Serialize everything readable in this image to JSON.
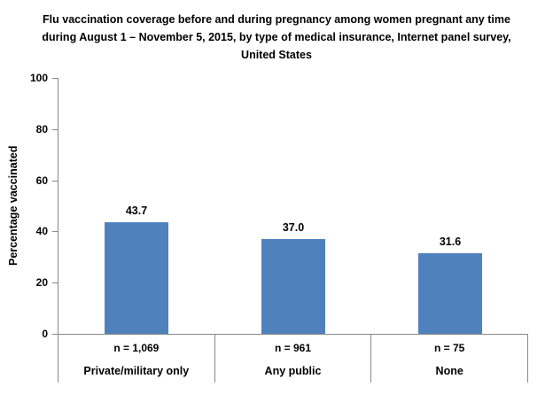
{
  "chart_data": {
    "type": "bar",
    "title": "Flu vaccination coverage before and during pregnancy among women pregnant any time during August 1 – November 5, 2015, by type of medical insurance, Internet panel survey, United States",
    "ylabel": "Percentage vaccinated",
    "xlabel": "",
    "ylim": [
      0,
      100
    ],
    "yticks": [
      "100",
      "80",
      "60",
      "40",
      "20",
      "0"
    ],
    "categories": [
      "Private/military only",
      "Any public",
      "None"
    ],
    "n_labels": [
      "n = 1,069",
      "n = 961",
      "n = 75"
    ],
    "values": [
      43.7,
      37.0,
      31.6
    ],
    "value_labels": [
      "43.7",
      "37.0",
      "31.6"
    ],
    "bar_color": "#4F81BD",
    "axis_color": "#898989",
    "grid": false,
    "legend": "none"
  }
}
